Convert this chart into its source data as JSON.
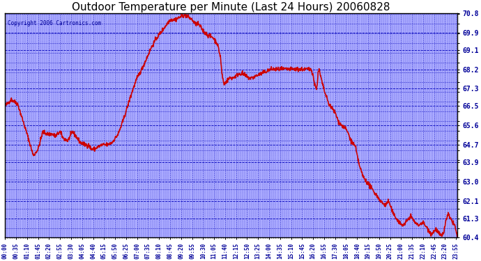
{
  "title": "Outdoor Temperature per Minute (Last 24 Hours) 20060828",
  "copyright_text": "Copyright 2006 Cartronics.com",
  "line_color": "#cc0000",
  "line_width": 1.2,
  "yticks": [
    60.4,
    61.3,
    62.1,
    63.0,
    63.9,
    64.7,
    65.6,
    66.5,
    67.3,
    68.2,
    69.1,
    69.9,
    70.8
  ],
  "ymin": 60.4,
  "ymax": 70.8,
  "plot_bg_color": "#aaaaff",
  "grid_color": "#0000bb",
  "title_fontsize": 11,
  "tick_label_color": "#000099",
  "copyright_color": "#000099"
}
